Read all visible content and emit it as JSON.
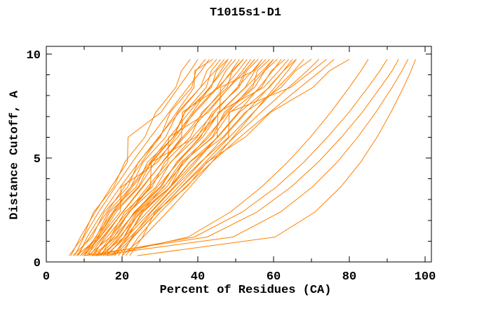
{
  "chart_data": {
    "type": "line",
    "title": "T1015s1-D1",
    "xlabel": "Percent of Residues (CA)",
    "ylabel": "Distance Cutoff, A",
    "xlim": [
      0,
      100
    ],
    "ylim": [
      0,
      10
    ],
    "xticks_major": [
      0,
      20,
      40,
      60,
      80,
      100
    ],
    "xticks_minor": [
      10,
      30,
      50,
      70,
      90
    ],
    "yticks_major": [
      0,
      5,
      10
    ],
    "yticks_minor": [
      1,
      2,
      3,
      4,
      6,
      7,
      8,
      9
    ],
    "legend": "none",
    "grid": false,
    "line_color": "#ff8000",
    "frame_color": "#000000",
    "y_levels": [
      0.3,
      1.2,
      2.4,
      3.6,
      4.8,
      6.0,
      7.2,
      8.4,
      9.2,
      9.75
    ],
    "curves": [
      [
        6,
        9.7,
        12.5,
        17.8,
        20.7,
        26,
        28.9,
        34.2,
        35.7,
        38
      ],
      [
        6.5,
        9,
        12.9,
        17.1,
        21.4,
        21.6,
        30.3,
        34.9,
        38.1,
        40
      ],
      [
        7,
        12.1,
        15.3,
        21.5,
        24.3,
        30.1,
        32.7,
        38.4,
        39.5,
        42
      ],
      [
        7.5,
        9.9,
        13.8,
        18.2,
        22.7,
        27.5,
        32.4,
        37.4,
        40.9,
        43
      ],
      [
        8,
        11.5,
        16,
        20.6,
        25.2,
        29.8,
        34.4,
        39,
        39.2,
        44
      ],
      [
        8,
        13.9,
        17.9,
        24.3,
        27.6,
        33.5,
        36.5,
        42.2,
        43.6,
        46
      ],
      [
        8.5,
        10.8,
        14.9,
        19.5,
        24.4,
        29.6,
        35.1,
        40.7,
        44.6,
        47
      ],
      [
        9,
        13.7,
        16.7,
        23.7,
        26.7,
        33.6,
        36.6,
        43.6,
        44.9,
        48
      ],
      [
        9.5,
        14.2,
        19.5,
        19.7,
        29.4,
        34,
        38.6,
        43.2,
        46.1,
        48
      ],
      [
        10,
        13,
        17.5,
        22.3,
        27.4,
        32.5,
        37.7,
        43.1,
        46.7,
        49
      ],
      [
        10,
        14.3,
        18.4,
        24.5,
        28.7,
        34.7,
        38.9,
        45,
        47.4,
        50
      ],
      [
        10.5,
        14.9,
        20.2,
        25.5,
        30.6,
        35.7,
        35.9,
        45.7,
        48.9,
        51
      ],
      [
        11,
        13.5,
        17.8,
        22.7,
        27.9,
        33.5,
        39.3,
        45.3,
        49.4,
        52
      ],
      [
        11,
        16.9,
        20.7,
        27.9,
        31.3,
        38,
        41.1,
        47.8,
        49.1,
        52
      ],
      [
        11.5,
        15.1,
        20.1,
        25.3,
        30.7,
        36,
        41.5,
        47,
        50.7,
        53
      ],
      [
        12,
        16,
        21.4,
        26.7,
        32.1,
        32.3,
        42.8,
        48.2,
        51.8,
        54
      ],
      [
        12,
        18.5,
        23.4,
        30.3,
        34.4,
        40.7,
        44.4,
        50.5,
        52.5,
        55
      ],
      [
        12.5,
        15.4,
        20.1,
        25.3,
        30.7,
        36.4,
        42.3,
        48.3,
        52.5,
        55
      ],
      [
        13,
        17.9,
        21.8,
        28.9,
        32.8,
        39.8,
        43.8,
        50.9,
        52.9,
        56
      ],
      [
        13,
        17.8,
        23.6,
        29.3,
        34.9,
        40.4,
        45.8,
        46,
        54.8,
        57
      ],
      [
        13.5,
        16.8,
        21.9,
        27.2,
        32.9,
        38.6,
        44.4,
        50.4,
        54.5,
        57
      ],
      [
        14,
        18.8,
        23.2,
        30,
        34.5,
        41.3,
        45.7,
        52.5,
        55.1,
        58
      ],
      [
        14,
        20.6,
        24.6,
        32.7,
        36.1,
        43.8,
        47,
        54.5,
        55.7,
        59
      ],
      [
        14.5,
        17.2,
        22,
        27.5,
        27.7,
        39.4,
        45.9,
        52.6,
        57.1,
        60
      ],
      [
        15,
        19.3,
        25,
        30.8,
        36.6,
        42.3,
        48,
        53.8,
        57.6,
        60
      ],
      [
        15,
        19.7,
        23.8,
        31,
        35.6,
        42.9,
        47.5,
        55,
        57.7,
        61
      ],
      [
        15.5,
        21.2,
        27.5,
        33.6,
        39.5,
        45.1,
        50.7,
        56.2,
        59.8,
        62
      ],
      [
        16,
        20.5,
        24.1,
        31.8,
        36,
        44,
        48.5,
        56.8,
        59.4,
        63
      ],
      [
        16,
        20.6,
        26.7,
        32.8,
        39,
        45.1,
        45.3,
        57.4,
        61.4,
        64
      ],
      [
        17,
        22.2,
        28.5,
        34.8,
        40.9,
        46.9,
        52.8,
        58.7,
        62.6,
        65
      ],
      [
        17.5,
        21.3,
        25.6,
        32.6,
        37.8,
        45.3,
        51,
        58.9,
        62.6,
        66
      ],
      [
        18,
        22.8,
        29.2,
        35.6,
        42,
        48.3,
        54.7,
        61.1,
        65.4,
        68
      ],
      [
        18,
        21.6,
        25.2,
        32.8,
        37.9,
        46.6,
        52.5,
        62,
        65.8,
        70
      ],
      [
        19,
        23,
        29.2,
        35.7,
        42.6,
        49.6,
        56.7,
        64,
        68.9,
        72
      ],
      [
        20,
        22.6,
        27.7,
        33.9,
        40.7,
        48.1,
        48.3,
        64.5,
        70.2,
        74
      ],
      [
        21,
        24.3,
        30.1,
        36.7,
        43.7,
        51.1,
        59,
        67,
        72.5,
        76
      ],
      [
        22,
        25.4,
        28.7,
        37.1,
        42.4,
        52.5,
        59.2,
        70.4,
        74.8,
        80
      ],
      [
        16,
        37.4,
        48.6,
        56.8,
        63.7,
        69.7,
        75.1,
        80,
        83.1,
        85
      ],
      [
        12,
        39.1,
        51.7,
        60.7,
        68,
        74.2,
        79.9,
        84.9,
        88.1,
        90
      ],
      [
        10,
        42.5,
        55.6,
        64.6,
        71.8,
        77.9,
        83.4,
        88.2,
        91.3,
        93
      ],
      [
        13,
        49.3,
        61.8,
        70.2,
        76.8,
        82.2,
        87,
        91.3,
        93.9,
        95.5
      ],
      [
        24,
        60.4,
        70.9,
        77.7,
        83,
        87.3,
        91,
        94.3,
        96.3,
        97.5
      ],
      [
        9,
        13.2,
        16.3,
        22.3,
        25.5,
        31.5,
        34.7,
        40.7,
        42.4,
        45
      ],
      [
        20,
        25.6,
        31.9,
        37.9,
        43.7,
        49.3,
        54.8,
        60.3,
        63.8,
        66
      ]
    ]
  }
}
